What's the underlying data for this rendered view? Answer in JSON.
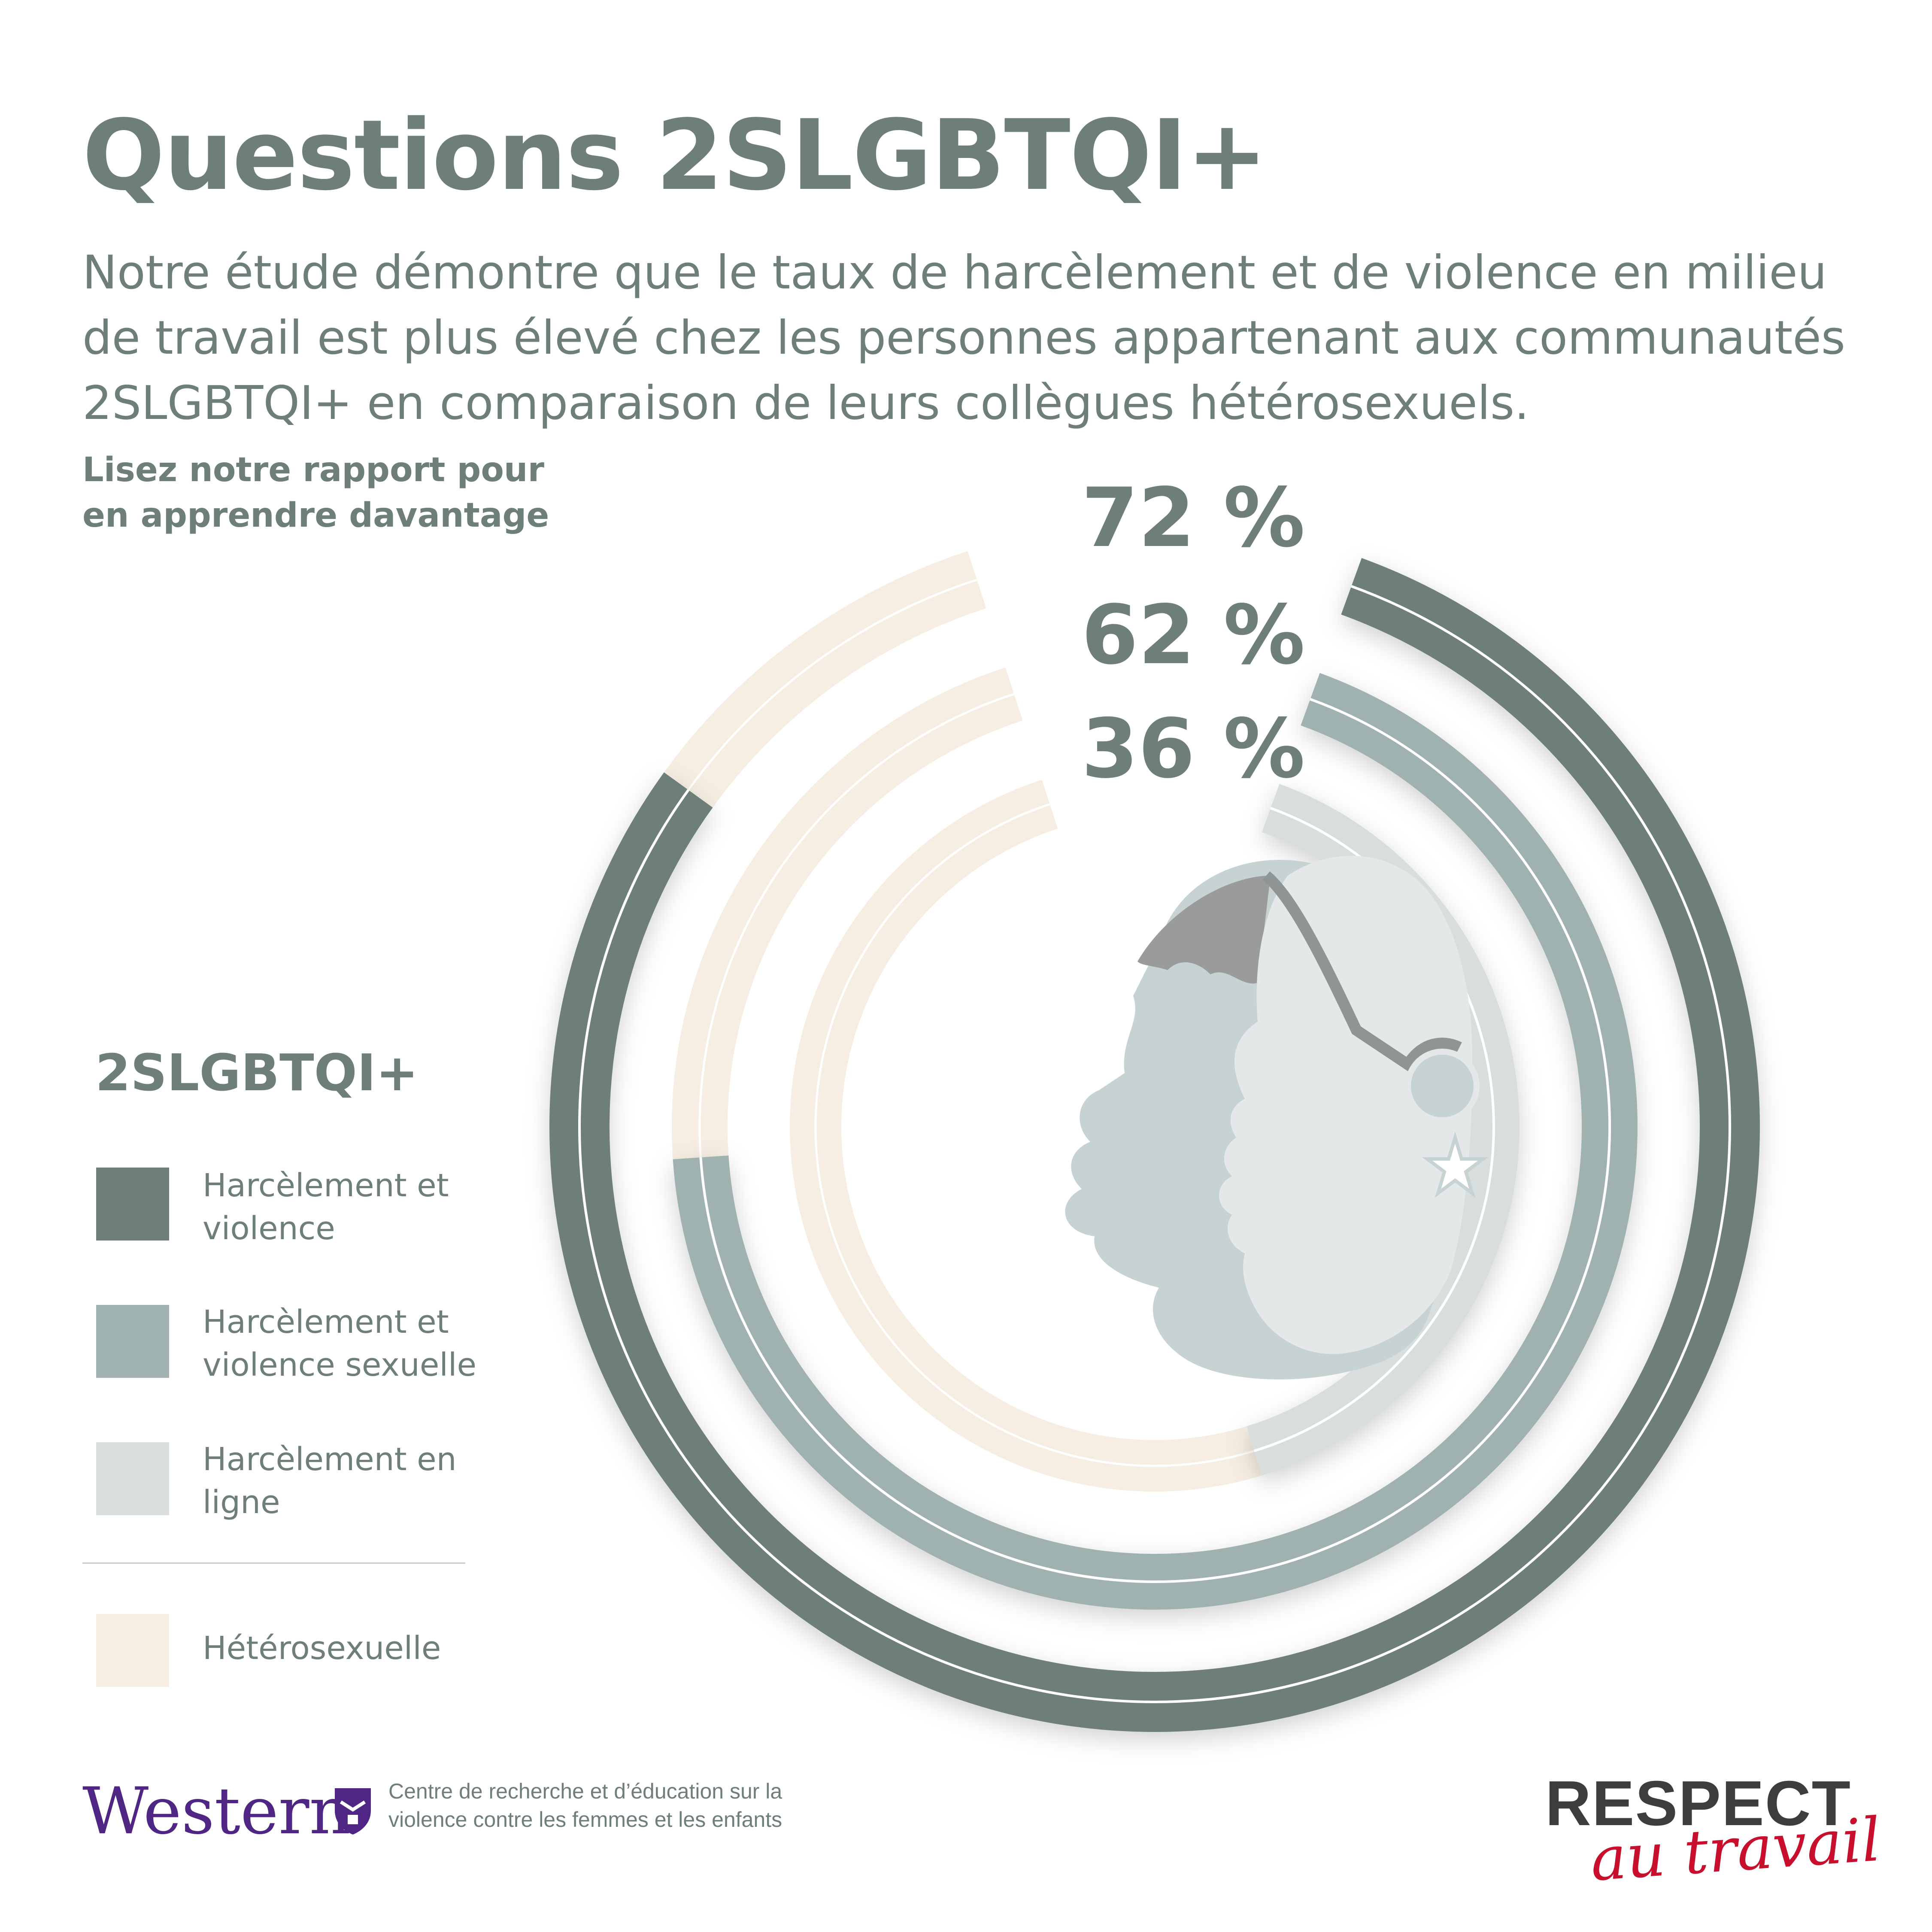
{
  "header": {
    "title": "Questions 2SLGBTQI+",
    "subtitle": "Notre étude démontre que le taux de harcèlement et de violence en milieu de travail est plus élevé chez les personnes appartenant aux communautés 2SLGBTQI+ en comparaison de leurs collègues hétérosexuels.",
    "cta": "Lisez notre rapport pour en apprendre davantage"
  },
  "legend": {
    "title": "2SLGBTQI+",
    "items": [
      {
        "label": "Harcèlement et violence",
        "color": "#6e7e79"
      },
      {
        "label": "Harcèlement et violence sexuelle",
        "color": "#a0b2b0"
      },
      {
        "label": "Harcèlement en ligne",
        "color": "#d8dedd"
      }
    ],
    "reference": {
      "label": "Hétérosexuelle",
      "color": "#f6eee2"
    }
  },
  "chart_data": {
    "type": "radial-bar",
    "value_unit": "%",
    "series": [
      {
        "name": "Harcèlement et violence",
        "value": 72,
        "label": "72 %",
        "color": "#6e7e79"
      },
      {
        "name": "Harcèlement et violence sexuelle",
        "value": 62,
        "label": "62 %",
        "color": "#a0b2b0"
      },
      {
        "name": "Harcèlement en ligne",
        "value": 36,
        "label": "36 %",
        "color": "#d8dedd"
      }
    ],
    "background_track_color": "#f6eee2"
  },
  "footer": {
    "university": "Western",
    "centre": "Centre de recherche et d’éducation sur la violence contre les femmes et les enfants",
    "brand_top": "RESPECT",
    "brand_bottom": "au travail",
    "brand_accent_color": "#c8102e"
  },
  "icons": [
    "two-faces-icon",
    "star-icon",
    "western-crest-icon"
  ]
}
